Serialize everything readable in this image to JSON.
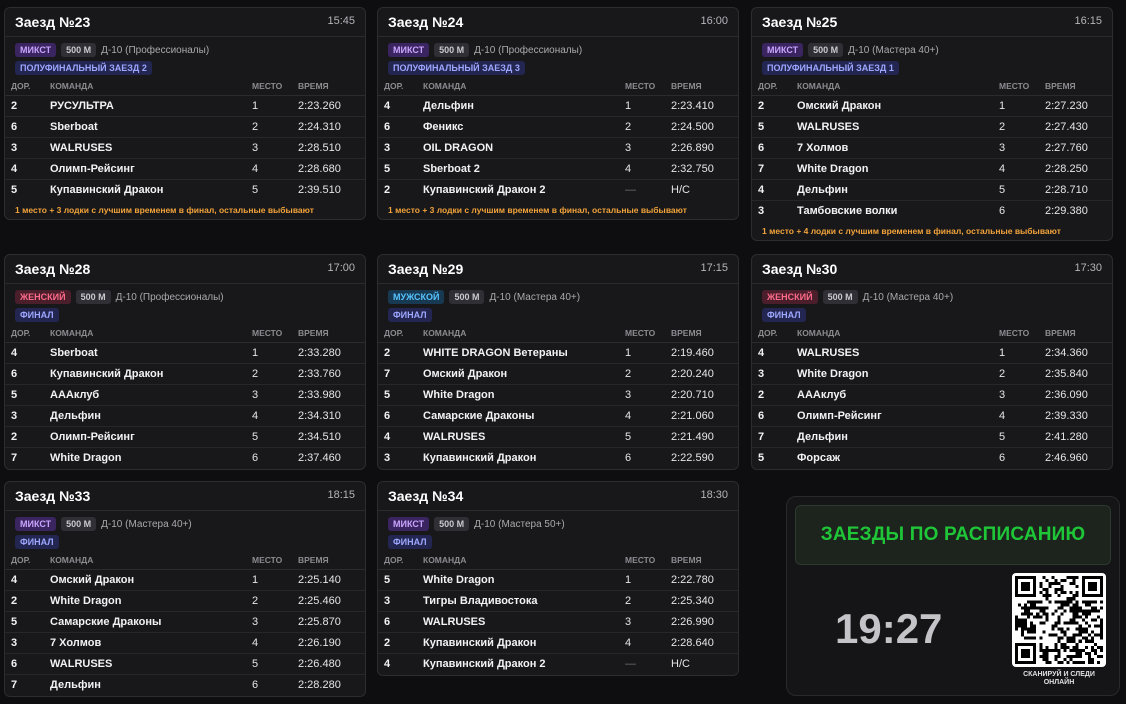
{
  "heats": [
    {
      "title": "Заезд №23",
      "time": "15:45",
      "category": "МИКСТ",
      "category_type": "mix",
      "distance": "500 М",
      "boat": "Д-10 (Профессионалы)",
      "stage": "ПОЛУФИНАЛЬНЫЙ ЗАЕЗД 2",
      "headers": [
        "ДОР.",
        "КОМАНДА",
        "МЕСТО",
        "ВРЕМЯ"
      ],
      "rows": [
        [
          "2",
          "РУСУЛЬТРА",
          "1",
          "2:23.260"
        ],
        [
          "6",
          "Sberboat",
          "2",
          "2:24.310"
        ],
        [
          "3",
          "WALRUSES",
          "3",
          "2:28.510"
        ],
        [
          "4",
          "Олимп-Рейсинг",
          "4",
          "2:28.680"
        ],
        [
          "5",
          "Купавинский Дракон",
          "5",
          "2:39.510"
        ]
      ],
      "note": "1 место + 3 лодки с лучшим временем в финал, остальные выбывают"
    },
    {
      "title": "Заезд №24",
      "time": "16:00",
      "category": "МИКСТ",
      "category_type": "mix",
      "distance": "500 М",
      "boat": "Д-10 (Профессионалы)",
      "stage": "ПОЛУФИНАЛЬНЫЙ ЗАЕЗД 3",
      "headers": [
        "ДОР.",
        "КОМАНДА",
        "МЕСТО",
        "ВРЕМЯ"
      ],
      "rows": [
        [
          "4",
          "Дельфин",
          "1",
          "2:23.410"
        ],
        [
          "6",
          "Феникс",
          "2",
          "2:24.500"
        ],
        [
          "3",
          "OIL DRAGON",
          "3",
          "2:26.890"
        ],
        [
          "5",
          "Sberboat 2",
          "4",
          "2:32.750"
        ],
        [
          "2",
          "Купавинский Дракон 2",
          "—",
          "Н/С"
        ]
      ],
      "note": "1 место + 3 лодки с лучшим временем в финал, остальные выбывают"
    },
    {
      "title": "Заезд №25",
      "time": "16:15",
      "category": "МИКСТ",
      "category_type": "mix",
      "distance": "500 М",
      "boat": "Д-10 (Мастера 40+)",
      "stage": "ПОЛУФИНАЛЬНЫЙ ЗАЕЗД 1",
      "headers": [
        "ДОР.",
        "КОМАНДА",
        "МЕСТО",
        "ВРЕМЯ"
      ],
      "rows": [
        [
          "2",
          "Омский Дракон",
          "1",
          "2:27.230"
        ],
        [
          "5",
          "WALRUSES",
          "2",
          "2:27.430"
        ],
        [
          "6",
          "7 Холмов",
          "3",
          "2:27.760"
        ],
        [
          "7",
          "White Dragon",
          "4",
          "2:28.250"
        ],
        [
          "4",
          "Дельфин",
          "5",
          "2:28.710"
        ],
        [
          "3",
          "Тамбовские волки",
          "6",
          "2:29.380"
        ]
      ],
      "note": "1 место + 4 лодки с лучшим временем в финал, остальные выбывают"
    },
    {
      "title": "Заезд №28",
      "time": "17:00",
      "category": "ЖЕНСКИЙ",
      "category_type": "fem",
      "distance": "500 М",
      "boat": "Д-10 (Профессионалы)",
      "stage": "ФИНАЛ",
      "headers": [
        "ДОР.",
        "КОМАНДА",
        "МЕСТО",
        "ВРЕМЯ"
      ],
      "rows": [
        [
          "4",
          "Sberboat",
          "1",
          "2:33.280"
        ],
        [
          "6",
          "Купавинский Дракон",
          "2",
          "2:33.760"
        ],
        [
          "5",
          "АААклуб",
          "3",
          "2:33.980"
        ],
        [
          "3",
          "Дельфин",
          "4",
          "2:34.310"
        ],
        [
          "2",
          "Олимп-Рейсинг",
          "5",
          "2:34.510"
        ],
        [
          "7",
          "White Dragon",
          "6",
          "2:37.460"
        ]
      ],
      "note": ""
    },
    {
      "title": "Заезд №29",
      "time": "17:15",
      "category": "МУЖСКОЙ",
      "category_type": "male",
      "distance": "500 М",
      "boat": "Д-10 (Мастера 40+)",
      "stage": "ФИНАЛ",
      "headers": [
        "ДОР.",
        "КОМАНДА",
        "МЕСТО",
        "ВРЕМЯ"
      ],
      "rows": [
        [
          "2",
          "WHITE DRAGON Ветераны",
          "1",
          "2:19.460"
        ],
        [
          "7",
          "Омский Дракон",
          "2",
          "2:20.240"
        ],
        [
          "5",
          "White Dragon",
          "3",
          "2:20.710"
        ],
        [
          "6",
          "Самарские Драконы",
          "4",
          "2:21.060"
        ],
        [
          "4",
          "WALRUSES",
          "5",
          "2:21.490"
        ],
        [
          "3",
          "Купавинский Дракон",
          "6",
          "2:22.590"
        ]
      ],
      "note": ""
    },
    {
      "title": "Заезд №30",
      "time": "17:30",
      "category": "ЖЕНСКИЙ",
      "category_type": "fem",
      "distance": "500 М",
      "boat": "Д-10 (Мастера 40+)",
      "stage": "ФИНАЛ",
      "headers": [
        "ДОР.",
        "КОМАНДА",
        "МЕСТО",
        "ВРЕМЯ"
      ],
      "rows": [
        [
          "4",
          "WALRUSES",
          "1",
          "2:34.360"
        ],
        [
          "3",
          "White Dragon",
          "2",
          "2:35.840"
        ],
        [
          "2",
          "АААклуб",
          "3",
          "2:36.090"
        ],
        [
          "6",
          "Олимп-Рейсинг",
          "4",
          "2:39.330"
        ],
        [
          "7",
          "Дельфин",
          "5",
          "2:41.280"
        ],
        [
          "5",
          "Форсаж",
          "6",
          "2:46.960"
        ]
      ],
      "note": ""
    },
    {
      "title": "Заезд №33",
      "time": "18:15",
      "category": "МИКСТ",
      "category_type": "mix",
      "distance": "500 М",
      "boat": "Д-10 (Мастера 40+)",
      "stage": "ФИНАЛ",
      "headers": [
        "ДОР.",
        "КОМАНДА",
        "МЕСТО",
        "ВРЕМЯ"
      ],
      "rows": [
        [
          "4",
          "Омский Дракон",
          "1",
          "2:25.140"
        ],
        [
          "2",
          "White Dragon",
          "2",
          "2:25.460"
        ],
        [
          "5",
          "Самарские Драконы",
          "3",
          "2:25.870"
        ],
        [
          "3",
          "7 Холмов",
          "4",
          "2:26.190"
        ],
        [
          "6",
          "WALRUSES",
          "5",
          "2:26.480"
        ],
        [
          "7",
          "Дельфин",
          "6",
          "2:28.280"
        ]
      ],
      "note": ""
    },
    {
      "title": "Заезд №34",
      "time": "18:30",
      "category": "МИКСТ",
      "category_type": "mix",
      "distance": "500 М",
      "boat": "Д-10 (Мастера 50+)",
      "stage": "ФИНАЛ",
      "headers": [
        "ДОР.",
        "КОМАНДА",
        "МЕСТО",
        "ВРЕМЯ"
      ],
      "rows": [
        [
          "5",
          "White Dragon",
          "1",
          "2:22.780"
        ],
        [
          "3",
          "Тигры Владивостока",
          "2",
          "2:25.340"
        ],
        [
          "6",
          "WALRUSES",
          "3",
          "2:26.990"
        ],
        [
          "2",
          "Купавинский Дракон",
          "4",
          "2:28.640"
        ],
        [
          "4",
          "Купавинский Дракон 2",
          "—",
          "Н/С"
        ]
      ],
      "note": ""
    }
  ],
  "panel": {
    "schedule_button": "ЗАЕЗДЫ ПО РАСПИСАНИЮ",
    "clock": "19:27",
    "qr_icon": "qr-code-icon",
    "qr_caption_line1": "СКАНИРУЙ И СЛЕДИ",
    "qr_caption_line2": "ОНЛАЙН"
  },
  "colors": {
    "accent_green": "#1fc638",
    "note_orange": "#f2a33a",
    "mix": "#c9a4ff",
    "female": "#ff6b8a",
    "male": "#57c3ff",
    "stage": "#9ea7ff"
  }
}
